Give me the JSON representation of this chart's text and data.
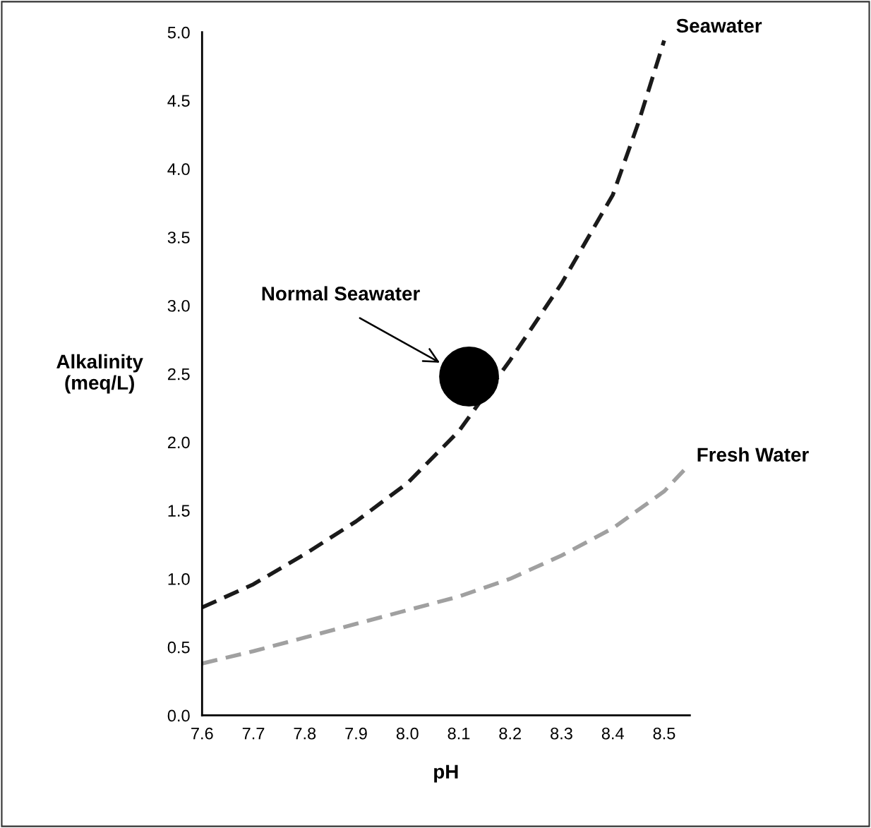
{
  "chart_data": {
    "type": "line",
    "xlabel": "pH",
    "ylabel": "Alkalinity\n(meq/L)",
    "xlim": [
      7.6,
      8.55
    ],
    "ylim": [
      0.0,
      5.0
    ],
    "xticks": [
      {
        "value": 7.6,
        "label": "7.6"
      },
      {
        "value": 7.7,
        "label": "7.7"
      },
      {
        "value": 7.8,
        "label": "7.8"
      },
      {
        "value": 7.9,
        "label": "7.9"
      },
      {
        "value": 8.0,
        "label": "8.0"
      },
      {
        "value": 8.1,
        "label": "8.1"
      },
      {
        "value": 8.2,
        "label": "8.2"
      },
      {
        "value": 8.3,
        "label": "8.3"
      },
      {
        "value": 8.4,
        "label": "8.4"
      },
      {
        "value": 8.5,
        "label": "8.5"
      }
    ],
    "yticks": [
      {
        "value": 0.0,
        "label": "0.0"
      },
      {
        "value": 0.5,
        "label": "0.5"
      },
      {
        "value": 1.0,
        "label": "1.0"
      },
      {
        "value": 1.5,
        "label": "1.5"
      },
      {
        "value": 2.0,
        "label": "2.0"
      },
      {
        "value": 2.5,
        "label": "2.5"
      },
      {
        "value": 3.0,
        "label": "3.0"
      },
      {
        "value": 3.5,
        "label": "3.5"
      },
      {
        "value": 4.0,
        "label": "4.0"
      },
      {
        "value": 4.5,
        "label": "4.5"
      },
      {
        "value": 5.0,
        "label": "5.0"
      }
    ],
    "grid": false,
    "legend": false,
    "line_style": "dashed",
    "series": [
      {
        "name": "Seawater",
        "color": "#1a1a1a",
        "x": [
          7.6,
          7.7,
          7.8,
          7.9,
          8.0,
          8.1,
          8.2,
          8.3,
          8.4,
          8.45,
          8.5
        ],
        "values": [
          0.79,
          0.96,
          1.18,
          1.42,
          1.7,
          2.08,
          2.6,
          3.16,
          3.81,
          4.34,
          4.94
        ]
      },
      {
        "name": "Fresh Water",
        "color": "#a0a0a0",
        "x": [
          7.6,
          7.7,
          7.8,
          7.9,
          8.0,
          8.1,
          8.2,
          8.3,
          8.4,
          8.5,
          8.54
        ],
        "values": [
          0.38,
          0.47,
          0.57,
          0.67,
          0.77,
          0.87,
          1.0,
          1.17,
          1.37,
          1.64,
          1.8
        ]
      },
      {
        "type": "scatter",
        "color": "#000000",
        "marker": "circle",
        "x": [
          8.12
        ],
        "values": [
          2.48
        ]
      }
    ],
    "annotations": [
      "Normal Seawater"
    ]
  }
}
